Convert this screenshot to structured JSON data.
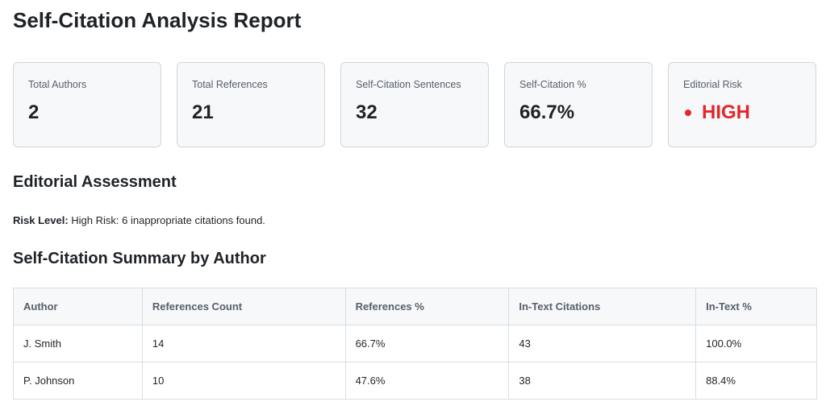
{
  "header": {
    "title": "Self-Citation Analysis Report"
  },
  "metrics": [
    {
      "label": "Total Authors",
      "value": "2"
    },
    {
      "label": "Total References",
      "value": "21"
    },
    {
      "label": "Self-Citation Sentences",
      "value": "32"
    },
    {
      "label": "Self-Citation %",
      "value": "66.7%"
    },
    {
      "label": "Editorial Risk",
      "value": "HIGH"
    }
  ],
  "colors": {
    "risk": "#e5262a"
  },
  "assessment": {
    "heading": "Editorial Assessment",
    "risk_label": "Risk Level:",
    "risk_text": "High Risk: 6 inappropriate citations found."
  },
  "summary": {
    "heading": "Self-Citation Summary by Author",
    "columns": [
      "Author",
      "References Count",
      "References %",
      "In-Text Citations",
      "In-Text %"
    ],
    "rows": [
      [
        "J. Smith",
        "14",
        "66.7%",
        "43",
        "100.0%"
      ],
      [
        "P. Johnson",
        "10",
        "47.6%",
        "38",
        "88.4%"
      ]
    ]
  }
}
